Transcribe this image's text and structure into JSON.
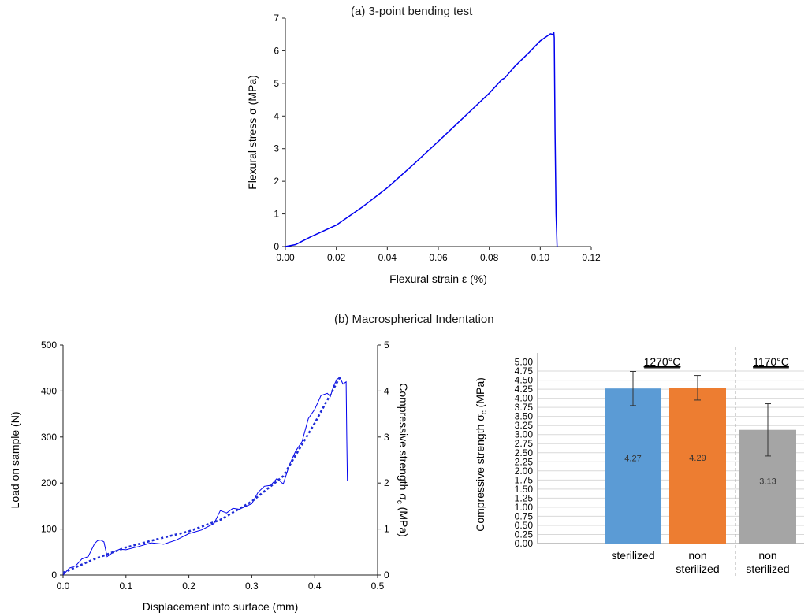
{
  "colors": {
    "curve": "#0000ee",
    "fit": "#1e2bd6",
    "axis": "#222222",
    "grid": "#d9d9d9",
    "bar_sterilized_1270": "#5b9bd5",
    "bar_nonsterilized_1270": "#ed7d31",
    "bar_nonsterilized_1170": "#a5a5a5",
    "divider": "#aaaaaa"
  },
  "chart_data": [
    {
      "id": "a",
      "type": "line",
      "title": "(a) 3-point bending test",
      "xlabel": "Flexural strain ε (%)",
      "ylabel": "Flexural stress σ (MPa)",
      "xlim": [
        0,
        0.12
      ],
      "ylim": [
        0,
        7
      ],
      "xticks": [
        "0.00",
        "0.02",
        "0.04",
        "0.06",
        "0.08",
        "0.10",
        "0.12"
      ],
      "yticks": [
        "0",
        "1",
        "2",
        "3",
        "4",
        "5",
        "6",
        "7"
      ],
      "grid": false,
      "series": [
        {
          "x": [
            0,
            0.004,
            0.01,
            0.02,
            0.03,
            0.04,
            0.05,
            0.06,
            0.07,
            0.08,
            0.085,
            0.086,
            0.09,
            0.095,
            0.1,
            0.104,
            0.105,
            0.1053,
            0.1055,
            0.1058,
            0.1062,
            0.1066
          ],
          "y": [
            0,
            0.06,
            0.3,
            0.66,
            1.2,
            1.8,
            2.5,
            3.22,
            3.96,
            4.7,
            5.12,
            5.16,
            5.52,
            5.9,
            6.3,
            6.52,
            6.5,
            6.58,
            6.4,
            3.5,
            1.0,
            0
          ]
        }
      ]
    },
    {
      "id": "b-left",
      "type": "line",
      "title": "(b) Macrospherical Indentation",
      "xlabel": "Displacement into surface (mm)",
      "ylabel": "Load on sample (N)",
      "y2label_main": "Compressive strength σ",
      "y2label_sub": "c",
      "y2label_end": " (MPa)",
      "xlim": [
        0,
        0.5
      ],
      "ylim": [
        0,
        500
      ],
      "y2lim": [
        0,
        5
      ],
      "xticks": [
        "0.0",
        "0.1",
        "0.2",
        "0.3",
        "0.4",
        "0.5"
      ],
      "yticks": [
        "0",
        "100",
        "200",
        "300",
        "400",
        "500"
      ],
      "y2ticks": [
        "0",
        "1",
        "2",
        "3",
        "4",
        "5"
      ],
      "grid": false,
      "series": [
        {
          "style": "solid",
          "x": [
            0,
            0.01,
            0.02,
            0.03,
            0.04,
            0.05,
            0.055,
            0.06,
            0.065,
            0.07,
            0.08,
            0.09,
            0.1,
            0.12,
            0.14,
            0.16,
            0.18,
            0.2,
            0.22,
            0.24,
            0.25,
            0.26,
            0.27,
            0.28,
            0.3,
            0.31,
            0.32,
            0.33,
            0.34,
            0.35,
            0.36,
            0.37,
            0.38,
            0.39,
            0.4,
            0.41,
            0.42,
            0.425,
            0.43,
            0.435,
            0.44,
            0.445,
            0.45,
            0.451,
            0.452
          ],
          "y": [
            0,
            15,
            20,
            35,
            40,
            68,
            75,
            76,
            72,
            40,
            50,
            56,
            55,
            62,
            70,
            67,
            76,
            90,
            98,
            112,
            140,
            135,
            145,
            143,
            155,
            180,
            193,
            195,
            210,
            198,
            240,
            270,
            290,
            340,
            360,
            390,
            395,
            388,
            410,
            425,
            430,
            415,
            420,
            300,
            205
          ]
        },
        {
          "style": "dotted",
          "x": [
            0,
            0.05,
            0.1,
            0.15,
            0.2,
            0.25,
            0.3,
            0.35,
            0.4,
            0.44
          ],
          "y": [
            5,
            35,
            60,
            78,
            95,
            120,
            160,
            215,
            330,
            430
          ]
        }
      ]
    },
    {
      "id": "b-right",
      "type": "bar",
      "ylabel_main": "Compressive strength σ",
      "ylabel_sub": "c",
      "ylabel_end": " (MPa)",
      "ylim": [
        0,
        5.25
      ],
      "yticks": [
        "0.00",
        "0.25",
        "0.50",
        "0.75",
        "1.00",
        "1.25",
        "1.50",
        "1.75",
        "2.00",
        "2.25",
        "2.50",
        "2.75",
        "3.00",
        "3.25",
        "3.50",
        "3.75",
        "4.00",
        "4.25",
        "4.50",
        "4.75",
        "5.00"
      ],
      "grid": true,
      "group_labels": [
        "1270°C",
        "1170°C"
      ],
      "categories": [
        [
          "sterilized"
        ],
        [
          "non",
          "sterilized"
        ],
        [
          "non",
          "sterilized"
        ]
      ],
      "values": [
        4.27,
        4.29,
        3.13
      ],
      "value_labels": [
        "4.27",
        "4.29",
        "3.13"
      ],
      "errors": [
        0.47,
        0.34,
        0.72
      ]
    }
  ]
}
